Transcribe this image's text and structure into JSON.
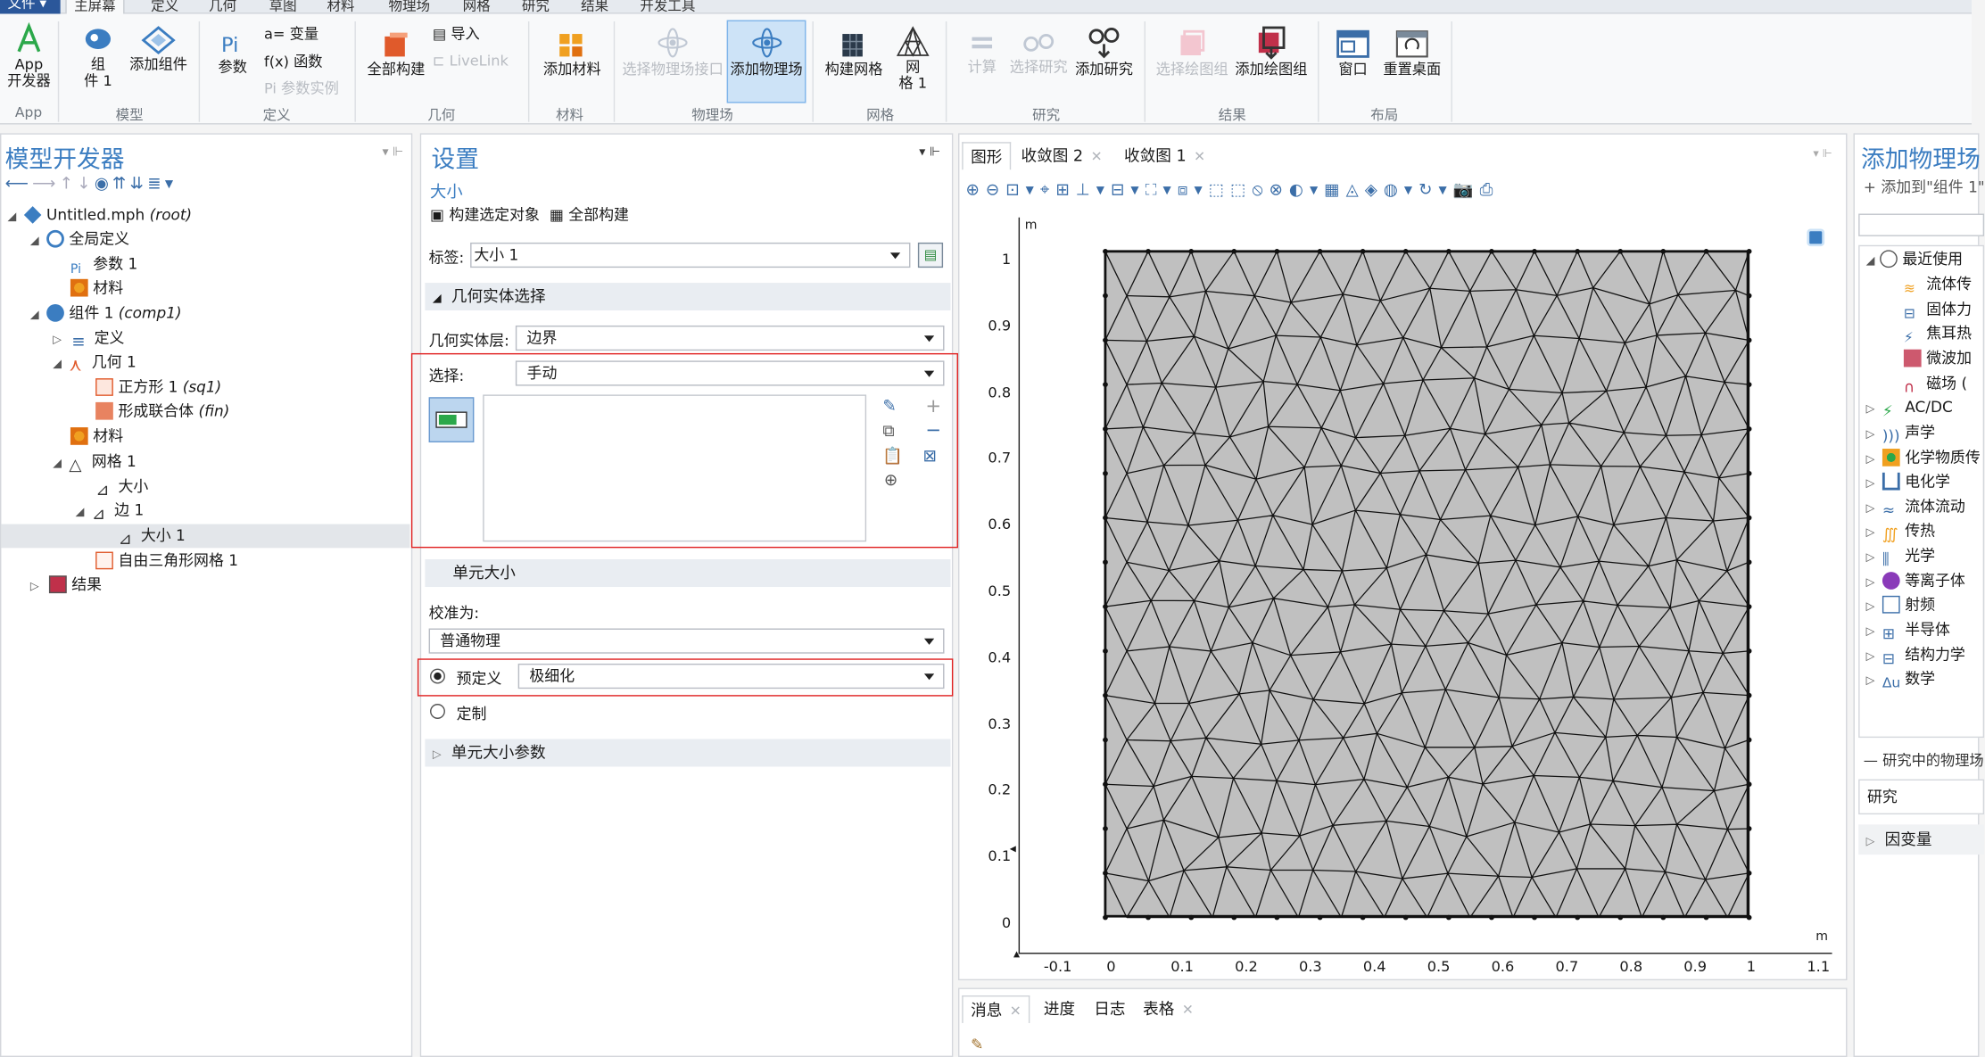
{
  "menu": {
    "file": "文件",
    "tabs": [
      "主屏幕",
      "定义",
      "几何",
      "草图",
      "材料",
      "物理场",
      "网格",
      "研究",
      "结果",
      "开发工具"
    ]
  },
  "ribbon": {
    "app_builder": "App\n开发器",
    "component": "组\n件 1",
    "add_component": "添加组件",
    "parameters": "参数",
    "variables": "a= 变量",
    "functions": "f(x) 函数",
    "param_case": "Pi 参数实例",
    "build_all": "全部构建",
    "import": "导入",
    "livelink": "LiveLink",
    "add_material": "添加材料",
    "select_physics": "选择物理场接口",
    "add_physics": "添加物理场",
    "build_mesh": "构建网格",
    "mesh1": "网\n格 1",
    "compute": "计算",
    "select_study": "选择研究",
    "add_study": "添加研究",
    "select_plot_group": "选择绘图组",
    "add_plot_group": "添加绘图组",
    "windows": "窗口",
    "reset_desktop": "重置桌面",
    "groups": [
      "App",
      "模型",
      "定义",
      "几何",
      "材料",
      "物理场",
      "网格",
      "研究",
      "结果",
      "布局"
    ]
  },
  "model_builder": {
    "title": "模型开发器",
    "tree": [
      {
        "label": "Untitled.mph",
        "suffix": "(root)"
      },
      {
        "label": "全局定义",
        "suffix": ""
      },
      {
        "label": "参数 1",
        "suffix": ""
      },
      {
        "label": "材料",
        "suffix": ""
      },
      {
        "label": "组件 1",
        "suffix": "(comp1)"
      },
      {
        "label": "定义",
        "suffix": ""
      },
      {
        "label": "几何 1",
        "suffix": ""
      },
      {
        "label": "正方形 1",
        "suffix": "(sq1)"
      },
      {
        "label": "形成联合体",
        "suffix": "(fin)"
      },
      {
        "label": "材料",
        "suffix": ""
      },
      {
        "label": "网格 1",
        "suffix": ""
      },
      {
        "label": "大小",
        "suffix": ""
      },
      {
        "label": "边 1",
        "suffix": ""
      },
      {
        "label": "大小 1",
        "suffix": ""
      },
      {
        "label": "自由三角形网格 1",
        "suffix": ""
      },
      {
        "label": "结果",
        "suffix": ""
      }
    ]
  },
  "settings": {
    "title": "设置",
    "subtitle": "大小",
    "build_selected": "构建选定对象",
    "build_all": "全部构建",
    "label_caption": "标签:",
    "label_value": "大小 1",
    "section_geom": "几何实体选择",
    "geom_level_caption": "几何实体层:",
    "geom_level_value": "边界",
    "selection_caption": "选择:",
    "selection_value": "手动",
    "section_element_size": "单元大小",
    "calibrate_caption": "校准为:",
    "calibrate_value": "普通物理",
    "predefined": "预定义",
    "predefined_value": "极细化",
    "custom": "定制",
    "section_params": "单元大小参数"
  },
  "graphics": {
    "tabs": [
      "图形",
      "收敛图 2",
      "收敛图 1"
    ],
    "axis_unit": "m",
    "y_ticks": [
      "1",
      "0.9",
      "0.8",
      "0.7",
      "0.6",
      "0.5",
      "0.4",
      "0.3",
      "0.2",
      "0.1",
      "0"
    ],
    "x_ticks": [
      "-0.1",
      "0",
      "0.1",
      "0.2",
      "0.3",
      "0.4",
      "0.5",
      "0.6",
      "0.7",
      "0.8",
      "0.9",
      "1",
      "1.1"
    ]
  },
  "bottom": {
    "tabs": [
      "消息",
      "进度",
      "日志",
      "表格"
    ]
  },
  "add_physics": {
    "title": "添加物理场",
    "add_to_component": "添加到\"组件 1\"",
    "recent": "最近使用",
    "recent_items": [
      "流体传",
      "固体力",
      "焦耳热",
      "微波加",
      "磁场 ("
    ],
    "categories": [
      "AC/DC",
      "声学",
      "化学物质传",
      "电化学",
      "流体流动",
      "传热",
      "光学",
      "等离子体",
      "射频",
      "半导体",
      "结构力学",
      "数学"
    ],
    "physics_in_study": "研究中的物理场",
    "study_col": "研究",
    "dependent_vars": "因变量"
  }
}
